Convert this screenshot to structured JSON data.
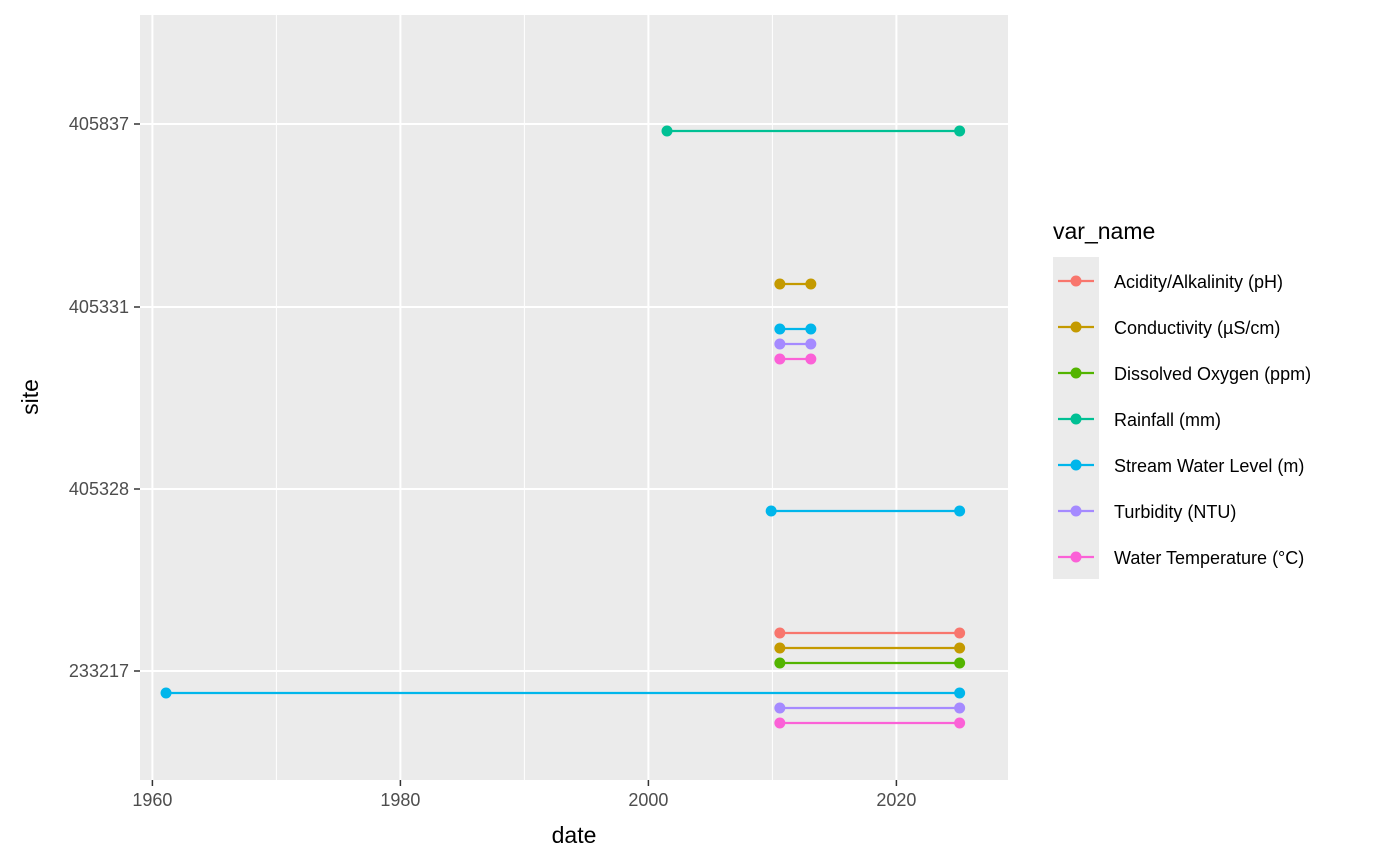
{
  "chart_data": {
    "type": "line",
    "xlabel": "date",
    "ylabel": "site",
    "x_ticks": [
      1960,
      1980,
      2000,
      2020
    ],
    "xlim": [
      1959,
      2029
    ],
    "y_categories": [
      "233217",
      "405328",
      "405331",
      "405837"
    ],
    "grid": true,
    "legend": {
      "title": "var_name",
      "placement": "right",
      "entries": [
        {
          "name": "Acidity/Alkalinity (pH)",
          "color": "#F8766D"
        },
        {
          "name": "Conductivity (µS/cm)",
          "color": "#C49A00"
        },
        {
          "name": "Dissolved Oxygen (ppm)",
          "color": "#53B400"
        },
        {
          "name": "Rainfall (mm)",
          "color": "#00C094"
        },
        {
          "name": "Stream Water Level (m)",
          "color": "#00B6EB"
        },
        {
          "name": "Turbidity (NTU)",
          "color": "#A58AFF"
        },
        {
          "name": "Water Temperature (°C)",
          "color": "#FB61D7"
        }
      ]
    },
    "segments": [
      {
        "site": "233217",
        "var": "Acidity/Alkalinity (pH)",
        "start": 2010.6,
        "end": 2025.1
      },
      {
        "site": "233217",
        "var": "Conductivity (µS/cm)",
        "start": 2010.6,
        "end": 2025.1
      },
      {
        "site": "233217",
        "var": "Dissolved Oxygen (ppm)",
        "start": 2010.6,
        "end": 2025.1
      },
      {
        "site": "233217",
        "var": "Stream Water Level (m)",
        "start": 1961.1,
        "end": 2025.1
      },
      {
        "site": "233217",
        "var": "Turbidity (NTU)",
        "start": 2010.6,
        "end": 2025.1
      },
      {
        "site": "233217",
        "var": "Water Temperature (°C)",
        "start": 2010.6,
        "end": 2025.1
      },
      {
        "site": "405328",
        "var": "Stream Water Level (m)",
        "start": 2009.9,
        "end": 2025.1
      },
      {
        "site": "405331",
        "var": "Conductivity (µS/cm)",
        "start": 2010.6,
        "end": 2013.1
      },
      {
        "site": "405331",
        "var": "Stream Water Level (m)",
        "start": 2010.6,
        "end": 2013.1
      },
      {
        "site": "405331",
        "var": "Turbidity (NTU)",
        "start": 2010.6,
        "end": 2013.1
      },
      {
        "site": "405331",
        "var": "Water Temperature (°C)",
        "start": 2010.6,
        "end": 2013.1
      },
      {
        "site": "405837",
        "var": "Rainfall (mm)",
        "start": 2001.5,
        "end": 2025.1
      }
    ]
  }
}
